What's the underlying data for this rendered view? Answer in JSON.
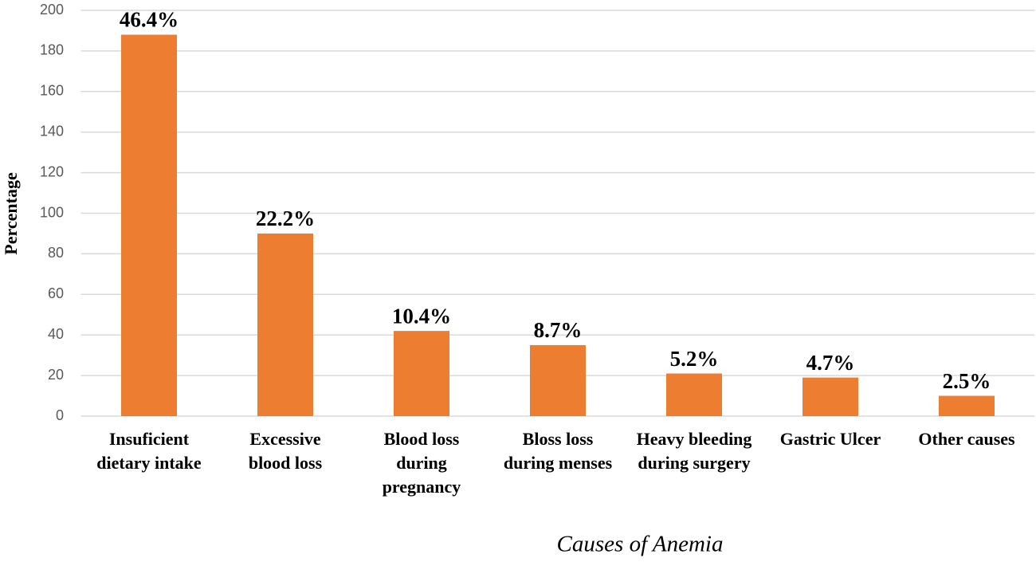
{
  "chart_data": {
    "type": "bar",
    "y_label": "Percentage",
    "x_label": "Causes of Anemia",
    "categories": [
      [
        "Insuficient",
        "dietary intake"
      ],
      [
        "Excessive",
        "blood loss"
      ],
      [
        "Blood loss",
        "during",
        "pregnancy"
      ],
      [
        "Bloss loss",
        "during menses"
      ],
      [
        "Heavy bleeding",
        "during surgery"
      ],
      [
        "Gastric Ulcer"
      ],
      [
        "Other causes"
      ]
    ],
    "values": [
      188,
      90,
      42,
      35,
      21,
      19,
      10
    ],
    "annotations": [
      "46.4%",
      "22.2%",
      "10.4%",
      "8.7%",
      "5.2%",
      "4.7%",
      "2.5%"
    ],
    "color": "#ed7d31",
    "ylim": [
      0,
      200
    ],
    "yticks": [
      0,
      20,
      40,
      60,
      80,
      100,
      120,
      140,
      160,
      180,
      200
    ],
    "grid": true
  }
}
